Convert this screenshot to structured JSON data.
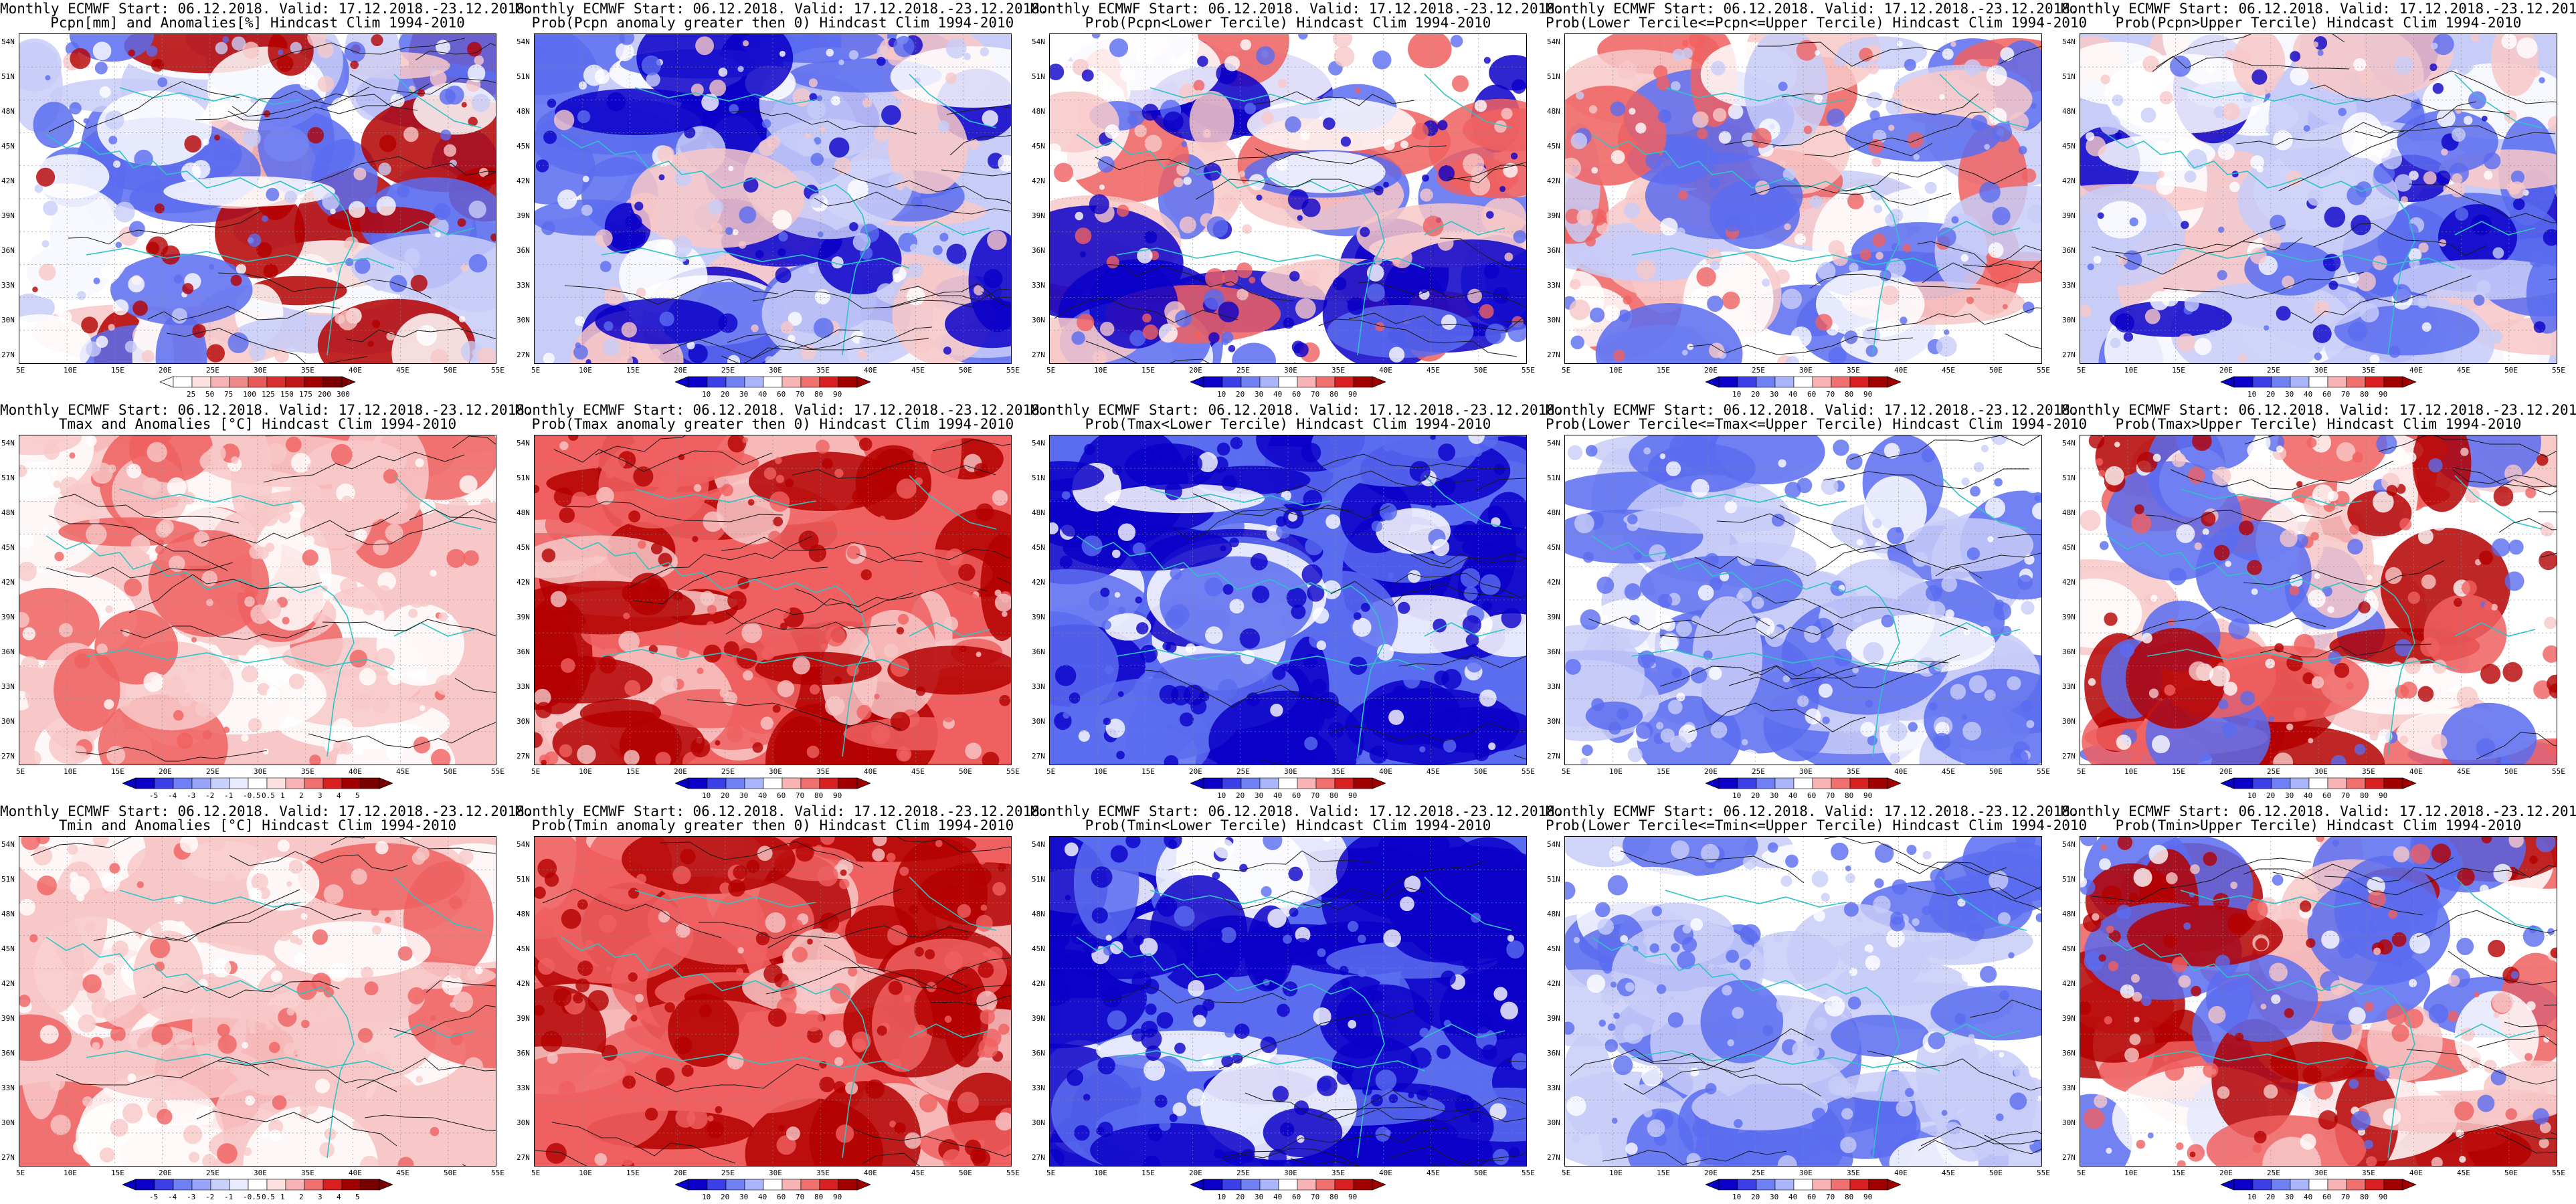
{
  "header_line": "Monthly ECMWF Start: 06.12.2018. Valid: 17.12.2018.-23.12.2018.",
  "lat_labels": [
    "54N",
    "51N",
    "48N",
    "45N",
    "42N",
    "39N",
    "36N",
    "33N",
    "30N",
    "27N"
  ],
  "lon_labels": [
    "5E",
    "10E",
    "15E",
    "20E",
    "25E",
    "30E",
    "35E",
    "40E",
    "45E",
    "50E",
    "55E"
  ],
  "colors": {
    "land_contour": "#1a1a1a",
    "coast": "#2ec4c4",
    "deep_blue": "#0a00c8",
    "mid_blue": "#5a6cf0",
    "light_blue": "#c8cdf8",
    "white": "#ffffff",
    "light_red": "#f8c8c8",
    "mid_red": "#f06060",
    "deep_red": "#b40000"
  },
  "colorbars": {
    "precip_anom": [
      "25",
      "50",
      "75",
      "100",
      "125",
      "150",
      "175",
      "200",
      "300"
    ],
    "prob": [
      "10",
      "20",
      "30",
      "40",
      "60",
      "70",
      "80",
      "90"
    ],
    "temp_anom": [
      "-5",
      "-4",
      "-3",
      "-2",
      "-1",
      "-0.5",
      "0.5",
      "1",
      "2",
      "3",
      "4",
      "5"
    ]
  },
  "panels": [
    {
      "title": "Pcpn[mm] and Anomalies[%] Hindcast Clim 1994-2010",
      "bar": "precip_anom",
      "scheme": "precip"
    },
    {
      "title": "Prob(Pcpn anomaly greater then 0) Hindcast Clim 1994-2010",
      "bar": "prob",
      "scheme": "blue"
    },
    {
      "title": "Prob(Pcpn<Lower Tercile) Hindcast Clim 1994-2010",
      "bar": "prob",
      "scheme": "deepblue_w"
    },
    {
      "title": "Prob(Lower Tercile<=Pcpn<=Upper Tercile) Hindcast Clim 1994-2010",
      "bar": "prob",
      "scheme": "light"
    },
    {
      "title": "Prob(Pcpn>Upper Tercile) Hindcast Clim 1994-2010",
      "bar": "prob",
      "scheme": "blue"
    },
    {
      "title": "Tmax and Anomalies [°C] Hindcast Clim 1994-2010",
      "bar": "temp_anom",
      "scheme": "lightred"
    },
    {
      "title": "Prob(Tmax anomaly greater then 0) Hindcast Clim 1994-2010",
      "bar": "prob",
      "scheme": "red"
    },
    {
      "title": "Prob(Tmax<Lower Tercile) Hindcast Clim 1994-2010",
      "bar": "prob",
      "scheme": "deepblue"
    },
    {
      "title": "Prob(Lower Tercile<=Tmax<=Upper Tercile) Hindcast Clim 1994-2010",
      "bar": "prob",
      "scheme": "midblue"
    },
    {
      "title": "Prob(Tmax>Upper Tercile) Hindcast Clim 1994-2010",
      "bar": "prob",
      "scheme": "mixred"
    },
    {
      "title": "Tmin and Anomalies [°C] Hindcast Clim 1994-2010",
      "bar": "temp_anom",
      "scheme": "lightred"
    },
    {
      "title": "Prob(Tmin anomaly greater then 0) Hindcast Clim 1994-2010",
      "bar": "prob",
      "scheme": "red"
    },
    {
      "title": "Prob(Tmin<Lower Tercile) Hindcast Clim 1994-2010",
      "bar": "prob",
      "scheme": "deepblue"
    },
    {
      "title": "Prob(Lower Tercile<=Tmin<=Upper Tercile) Hindcast Clim 1994-2010",
      "bar": "prob",
      "scheme": "midblue"
    },
    {
      "title": "Prob(Tmin>Upper Tercile) Hindcast Clim 1994-2010",
      "bar": "prob",
      "scheme": "mixred"
    }
  ]
}
